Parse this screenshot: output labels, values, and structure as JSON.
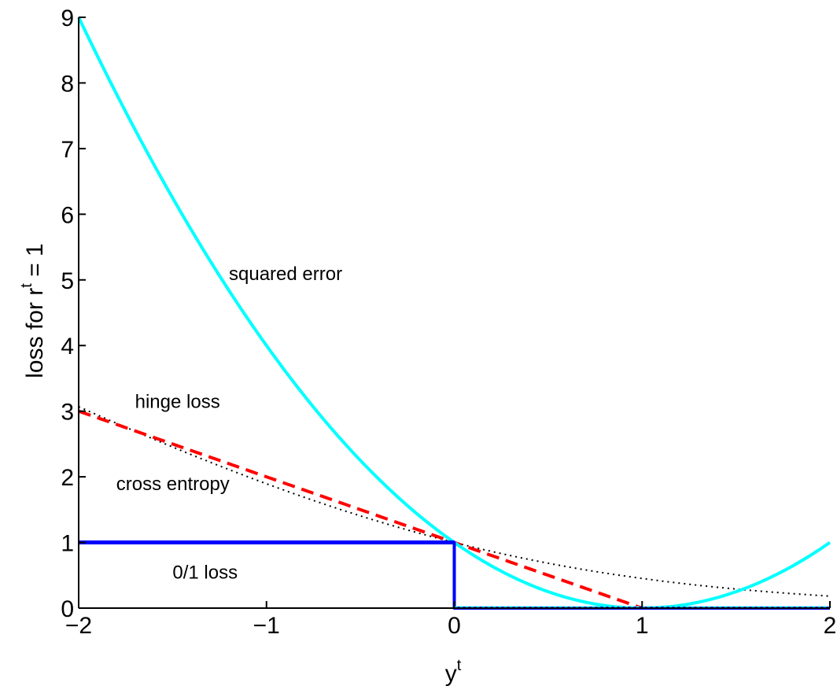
{
  "chart_data": {
    "type": "line",
    "xlabel": "y",
    "xlabel_sup": "t",
    "ylabel_prefix": "loss for r",
    "ylabel_sup": "t",
    "ylabel_suffix": " = 1",
    "xlim": [
      -2,
      2
    ],
    "ylim": [
      0,
      9
    ],
    "x_ticks": [
      -2,
      -1,
      0,
      1,
      2
    ],
    "x_tick_labels": [
      "−2",
      "−1",
      "0",
      "1",
      "2"
    ],
    "y_ticks": [
      0,
      1,
      2,
      3,
      4,
      5,
      6,
      7,
      8,
      9
    ],
    "y_tick_labels": [
      "0",
      "1",
      "2",
      "3",
      "4",
      "5",
      "6",
      "7",
      "8",
      "9"
    ],
    "grid": false,
    "series": [
      {
        "key": "squared",
        "color": "#00ffff",
        "style": "solid",
        "function": "(1 - x)^2",
        "x": [
          -2,
          -1.5,
          -1,
          -0.5,
          0,
          0.5,
          1,
          1.5,
          2
        ],
        "y": [
          9,
          6.25,
          4,
          2.25,
          1,
          0.25,
          0,
          0.25,
          1
        ]
      },
      {
        "key": "hinge",
        "color": "#ff0000",
        "style": "dashed",
        "function": "max(0, 1 - x)",
        "x": [
          -2,
          -1,
          0,
          1,
          2
        ],
        "y": [
          3,
          2,
          1,
          0,
          0
        ]
      },
      {
        "key": "cross",
        "color": "#000000",
        "style": "dotted",
        "function": "log2(1 + exp(-x))",
        "x": [
          -2,
          -1,
          0,
          1,
          2
        ],
        "y": [
          3.06,
          1.79,
          1,
          0.45,
          0.18
        ]
      },
      {
        "key": "zeroone",
        "color": "#0000ff",
        "style": "solid",
        "function": "step",
        "x": [
          -2,
          0,
          0,
          2
        ],
        "y": [
          1,
          1,
          0,
          0
        ]
      }
    ],
    "annotations": [
      {
        "text": "squared error",
        "x": -1.2,
        "y": 5
      },
      {
        "text": "hinge loss",
        "x": -1.7,
        "y": 3.05
      },
      {
        "text": "cross entropy",
        "x": -1.8,
        "y": 1.8
      },
      {
        "text": "0/1 loss",
        "x": -1.5,
        "y": 0.45
      }
    ]
  }
}
